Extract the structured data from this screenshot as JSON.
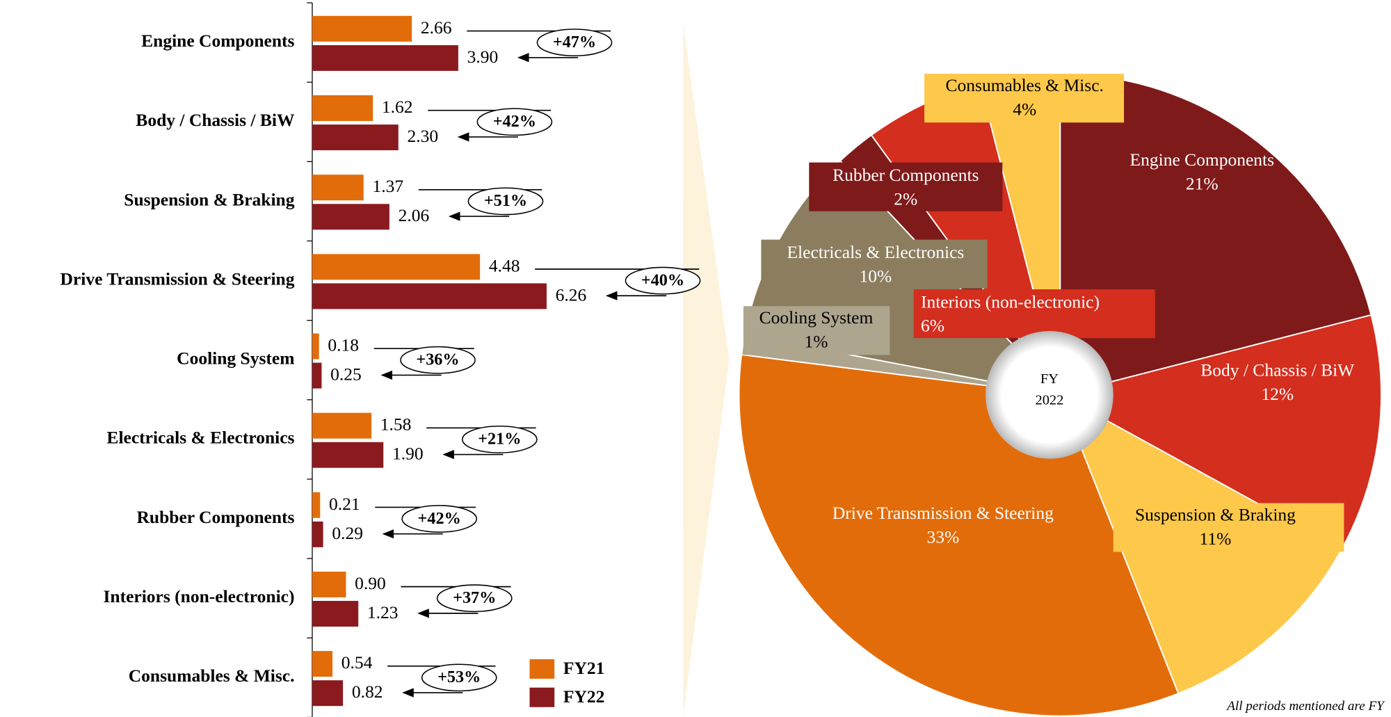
{
  "chart_data": [
    {
      "type": "bar",
      "orientation": "horizontal",
      "categories": [
        "Engine Components",
        "Body / Chassis / BiW",
        "Suspension & Braking",
        "Drive Transmission & Steering",
        "Cooling System",
        "Electricals & Electronics",
        "Rubber Components",
        "Interiors (non-electronic)",
        "Consumables & Misc."
      ],
      "series": [
        {
          "name": "FY21",
          "color": "#e36c0a",
          "values": [
            2.66,
            1.62,
            1.37,
            4.48,
            0.18,
            1.58,
            0.21,
            0.9,
            0.54
          ],
          "value_labels": [
            "2.66",
            "1.62",
            "1.37",
            "4.48",
            "0.18",
            "1.58",
            "0.21",
            "0.90",
            "0.54"
          ]
        },
        {
          "name": "FY22",
          "color": "#8b1a1f",
          "values": [
            3.9,
            2.3,
            2.06,
            6.26,
            0.25,
            1.9,
            0.29,
            1.23,
            0.82
          ],
          "value_labels": [
            "3.90",
            "2.30",
            "2.06",
            "6.26",
            "0.25",
            "1.90",
            "0.29",
            "1.23",
            "0.82"
          ]
        }
      ],
      "annotations": [
        "+47%",
        "+42%",
        "+51%",
        "+40%",
        "+36%",
        "+21%",
        "+42%",
        "+37%",
        "+53%"
      ],
      "xlim": [
        0,
        10
      ],
      "legend": "lower right"
    },
    {
      "type": "pie",
      "categories": [
        "Engine Components",
        "Body / Chassis / BiW",
        "Suspension & Braking",
        "Drive Transmission & Steering",
        "Cooling System",
        "Electricals & Electronics",
        "Rubber Components",
        "Interiors (non-electronic)",
        "Consumables & Misc."
      ],
      "values": [
        21,
        12,
        11,
        33,
        1,
        10,
        2,
        6,
        4
      ],
      "value_labels": [
        "21%",
        "12%",
        "11%",
        "33%",
        "1%",
        "10%",
        "2%",
        "6%",
        "4%"
      ],
      "colors": [
        "#7f1a1a",
        "#d42e1e",
        "#fec84a",
        "#e36c0a",
        "#ada58e",
        "#8b7d5e",
        "#7f1a1a",
        "#d42e1e",
        "#fec84a"
      ],
      "center_label": [
        "FY",
        "2022"
      ]
    }
  ],
  "footnote": "All periods mentioned are FY"
}
